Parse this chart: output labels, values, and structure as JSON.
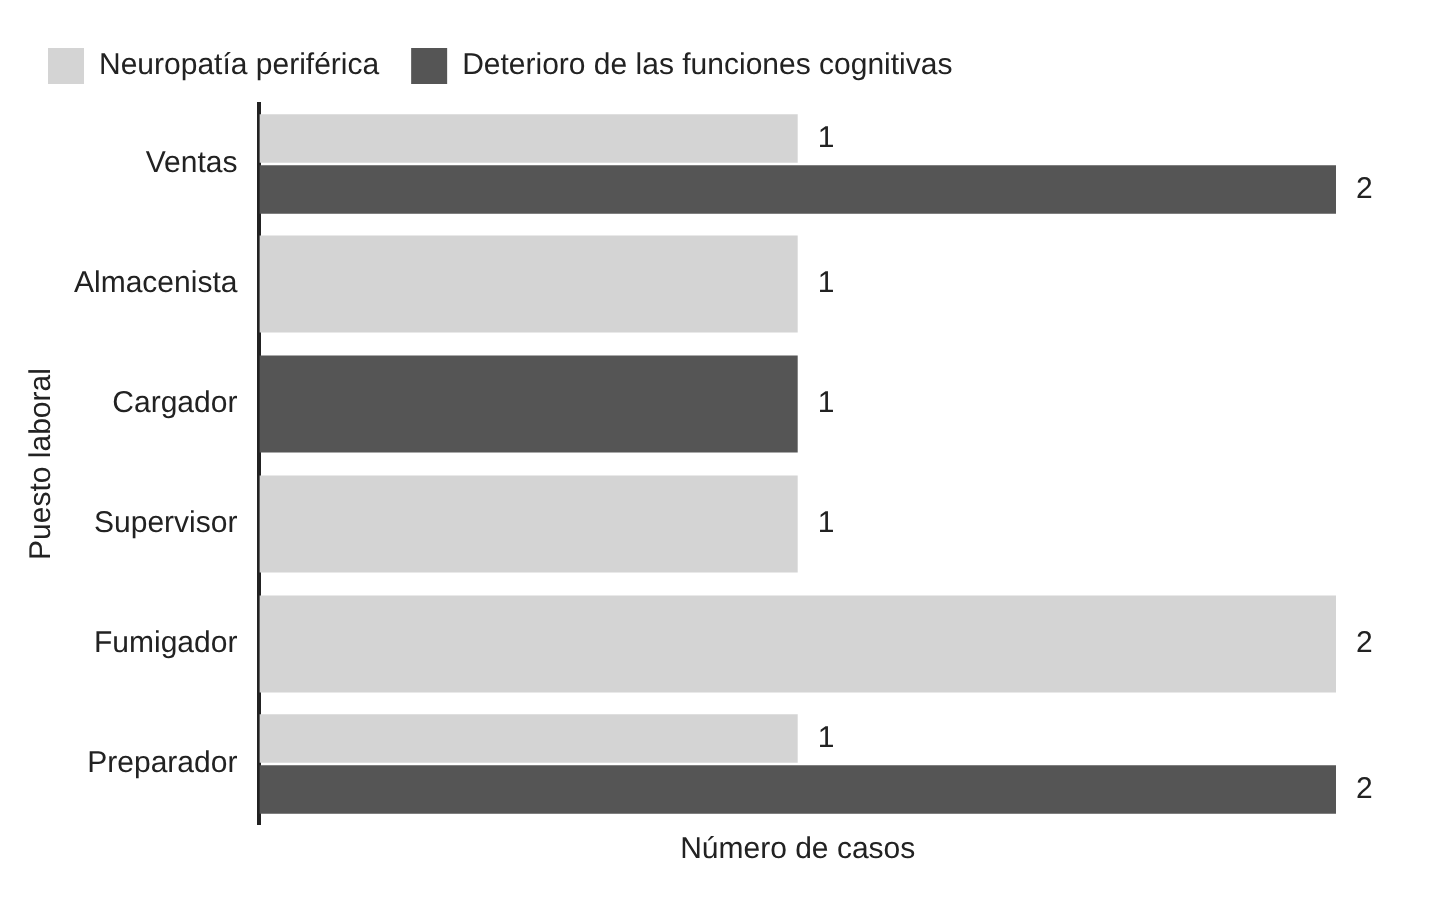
{
  "chart_data": {
    "type": "bar",
    "orientation": "horizontal",
    "xlabel": "Número de casos",
    "ylabel": "Puesto laboral",
    "categories": [
      "Ventas",
      "Almacenista",
      "Cargador",
      "Supervisor",
      "Fumigador",
      "Preparador"
    ],
    "series": [
      {
        "name": "Neuropatía periférica",
        "color": "#d4d4d4",
        "values": [
          1,
          1,
          null,
          1,
          2,
          1
        ]
      },
      {
        "name": "Deterioro de las funciones cognitivas",
        "color": "#555555",
        "values": [
          2,
          null,
          1,
          null,
          null,
          2
        ]
      }
    ],
    "xlim": [
      0,
      2
    ],
    "tick_labels": "y",
    "data_labels": true,
    "grid": false,
    "legend": "top left"
  }
}
